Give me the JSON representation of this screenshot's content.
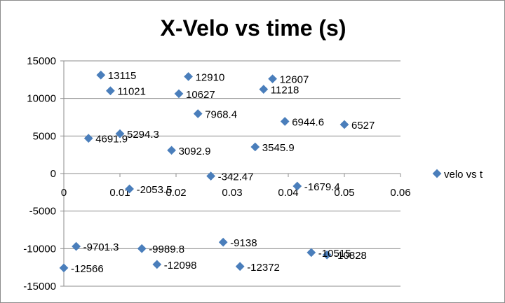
{
  "chart_data": {
    "type": "scatter",
    "title": "X-Velo vs time (s)",
    "xlabel": "",
    "ylabel": "",
    "xlim": [
      0,
      0.06
    ],
    "ylim": [
      -15000,
      15000
    ],
    "x_ticks": [
      0,
      0.01,
      0.02,
      0.03,
      0.04,
      0.05,
      0.06
    ],
    "y_ticks": [
      -15000,
      -10000,
      -5000,
      0,
      5000,
      10000,
      15000
    ],
    "x_tick_labels": [
      "0",
      "0.01",
      "0.02",
      "0.03",
      "0.04",
      "0.05",
      "0.06"
    ],
    "y_tick_labels": [
      "-15000",
      "-10000",
      "-5000",
      "0",
      "5000",
      "10000",
      "15000"
    ],
    "grid": "horizontal",
    "legend_position": "right",
    "marker_color": "#4a7ebb",
    "series": [
      {
        "name": "velo vs t",
        "points": [
          {
            "x": 0.0,
            "y": -12566,
            "label": "-12566"
          },
          {
            "x": 0.0022,
            "y": -9701.3,
            "label": "-9701.3"
          },
          {
            "x": 0.0044,
            "y": 4691.9,
            "label": "4691.9"
          },
          {
            "x": 0.0066,
            "y": 13115,
            "label": "13115"
          },
          {
            "x": 0.0083,
            "y": 11021,
            "label": "11021"
          },
          {
            "x": 0.01,
            "y": 5294.3,
            "label": "5294.3"
          },
          {
            "x": 0.0117,
            "y": -2053.5,
            "label": "-2053.5"
          },
          {
            "x": 0.0139,
            "y": -9989.8,
            "label": "-9989.8"
          },
          {
            "x": 0.0166,
            "y": -12098,
            "label": "-12098"
          },
          {
            "x": 0.0192,
            "y": 3092.9,
            "label": "3092.9"
          },
          {
            "x": 0.0205,
            "y": 10627,
            "label": "10627"
          },
          {
            "x": 0.0222,
            "y": 12910,
            "label": "12910"
          },
          {
            "x": 0.0239,
            "y": 7968.4,
            "label": "7968.4"
          },
          {
            "x": 0.0262,
            "y": -342.47,
            "label": "-342.47"
          },
          {
            "x": 0.0284,
            "y": -9138,
            "label": "-9138"
          },
          {
            "x": 0.0314,
            "y": -12372,
            "label": "-12372"
          },
          {
            "x": 0.0341,
            "y": 3545.9,
            "label": "3545.9"
          },
          {
            "x": 0.0356,
            "y": 11218,
            "label": "11218"
          },
          {
            "x": 0.0372,
            "y": 12607,
            "label": "12607"
          },
          {
            "x": 0.0394,
            "y": 6944.6,
            "label": "6944.6"
          },
          {
            "x": 0.0416,
            "y": -1679.4,
            "label": "-1679.4"
          },
          {
            "x": 0.0441,
            "y": -10515,
            "label": "-10515"
          },
          {
            "x": 0.0469,
            "y": -10828,
            "label": "-10828"
          },
          {
            "x": 0.05,
            "y": 6527,
            "label": "6527"
          }
        ]
      }
    ]
  }
}
